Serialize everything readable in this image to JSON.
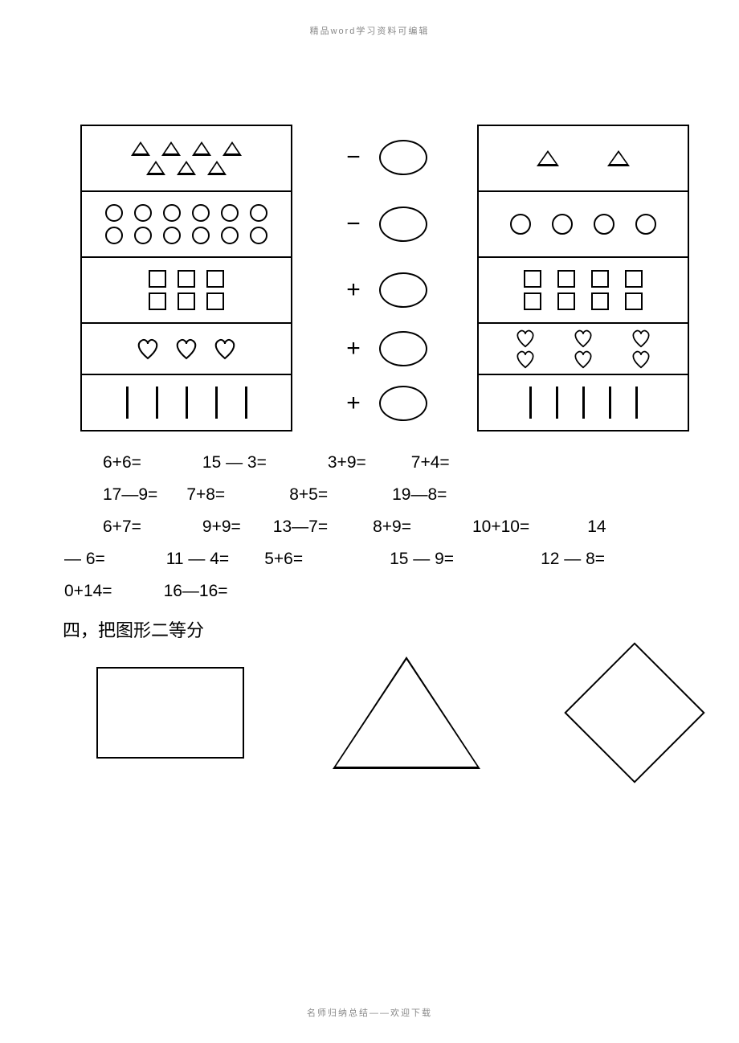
{
  "header_text": "精品word学习资料可编辑",
  "footer_text": "名师归纳总结——欢迎下载",
  "shape_table": {
    "rows": [
      {
        "left_shape": "triangle",
        "left_lines": [
          4,
          3
        ],
        "op": "−",
        "right_shape": "triangle",
        "right_items": [
          2
        ]
      },
      {
        "left_shape": "circle",
        "left_lines": [
          6,
          6
        ],
        "op": "−",
        "right_shape": "circle",
        "right_items": [
          4
        ]
      },
      {
        "left_shape": "square",
        "left_lines": [
          3,
          3
        ],
        "op": "+",
        "right_shape": "square",
        "right_items": [
          4,
          4
        ]
      },
      {
        "left_shape": "heart",
        "left_lines": [
          3
        ],
        "op": "+",
        "right_shape": "heart",
        "right_items": [
          3,
          3
        ]
      },
      {
        "left_shape": "stick",
        "left_lines": [
          5
        ],
        "op": "+",
        "right_shape": "stick",
        "right_items": [
          5
        ]
      }
    ]
  },
  "arithmetic": {
    "line1": [
      {
        "t": "6+6=",
        "ml": 48
      },
      {
        "t": "15 — 3=",
        "ml": 76
      },
      {
        "t": "3+9=",
        "ml": 76
      },
      {
        "t": "7+4=",
        "ml": 56
      }
    ],
    "line2": [
      {
        "t": "17—9=",
        "ml": 48
      },
      {
        "t": "7+8=",
        "ml": 36
      },
      {
        "t": "8+5=",
        "ml": 80
      },
      {
        "t": "19—8=",
        "ml": 80
      }
    ],
    "line3": [
      {
        "t": "6+7=",
        "ml": 48
      },
      {
        "t": "9+9=",
        "ml": 76
      },
      {
        "t": "13—7=",
        "ml": 40
      },
      {
        "t": "8+9=",
        "ml": 56
      },
      {
        "t": "10+10=",
        "ml": 76
      },
      {
        "t": "14",
        "ml": 72
      }
    ],
    "line4": [
      {
        "t": "— 6=",
        "ml": 0
      },
      {
        "t": "11 — 4=",
        "ml": 76
      },
      {
        "t": "5+6=",
        "ml": 44
      },
      {
        "t": "15 — 9=",
        "ml": 108
      },
      {
        "t": "12 — 8=",
        "ml": 108
      }
    ],
    "line5": [
      {
        "t": "0+14=",
        "ml": 0
      },
      {
        "t": "16—16=",
        "ml": 64
      }
    ]
  },
  "section4_title": "四，把图形二等分",
  "bisect": [
    "rectangle",
    "triangle",
    "diamond"
  ]
}
